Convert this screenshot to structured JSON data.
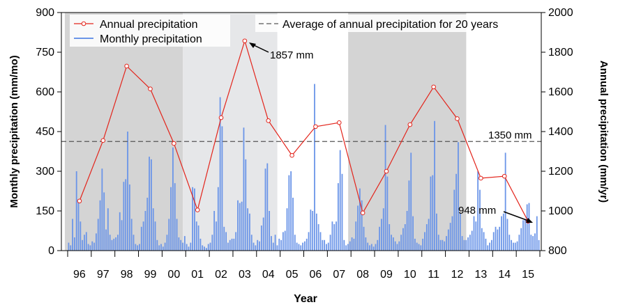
{
  "chart_data": {
    "type": "bar+line",
    "xlabel": "Year",
    "ylabel_left": "Monthly precipitation (mm/mo)",
    "ylabel_right": "Annual precipitation (mm/yr)",
    "ylim_left": [
      0,
      900
    ],
    "yticks_left": [
      0,
      150,
      300,
      450,
      600,
      750,
      900
    ],
    "ylim_right": [
      800,
      2000
    ],
    "yticks_right": [
      800,
      1000,
      1200,
      1400,
      1600,
      1800,
      2000
    ],
    "years": [
      "96",
      "97",
      "98",
      "99",
      "00",
      "01",
      "02",
      "03",
      "04",
      "05",
      "06",
      "07",
      "08",
      "09",
      "10",
      "11",
      "12",
      "13",
      "14",
      "15"
    ],
    "shaded_periods": [
      {
        "start_index": 0,
        "end_index": 4,
        "shade": "dark"
      },
      {
        "start_index": 5,
        "end_index": 8,
        "shade": "light"
      },
      {
        "start_index": 12,
        "end_index": 16,
        "shade": "dark"
      }
    ],
    "series": [
      {
        "name": "Annual precipitation",
        "axis": "right",
        "kind": "line",
        "color": "#e3241b",
        "values": [
          1050,
          1355,
          1730,
          1615,
          1340,
          1005,
          1470,
          1857,
          1455,
          1280,
          1425,
          1445,
          990,
          1200,
          1435,
          1625,
          1465,
          1165,
          1175,
          948
        ]
      },
      {
        "name": "Monthly precipitation",
        "axis": "left",
        "kind": "bar",
        "color": "#6b95e8",
        "values": [
          30,
          20,
          120,
          50,
          300,
          190,
          110,
          40,
          60,
          70,
          25,
          20,
          35,
          30,
          65,
          120,
          190,
          310,
          220,
          80,
          160,
          60,
          40,
          45,
          50,
          60,
          145,
          115,
          260,
          270,
          450,
          250,
          120,
          60,
          25,
          20,
          25,
          90,
          110,
          150,
          200,
          355,
          345,
          160,
          110,
          40,
          20,
          25,
          15,
          30,
          60,
          120,
          240,
          390,
          255,
          120,
          50,
          40,
          30,
          55,
          25,
          15,
          30,
          240,
          235,
          110,
          95,
          45,
          20,
          15,
          10,
          25,
          30,
          60,
          150,
          110,
          240,
          580,
          470,
          90,
          70,
          30,
          40,
          45,
          45,
          70,
          190,
          180,
          185,
          465,
          345,
          160,
          140,
          60,
          30,
          20,
          40,
          35,
          95,
          125,
          310,
          330,
          150,
          55,
          30,
          60,
          20,
          45,
          40,
          70,
          75,
          160,
          285,
          300,
          200,
          60,
          30,
          25,
          20,
          30,
          35,
          45,
          70,
          155,
          150,
          630,
          140,
          100,
          70,
          40,
          40,
          25,
          30,
          60,
          110,
          100,
          110,
          255,
          380,
          290,
          40,
          20,
          25,
          35,
          50,
          45,
          110,
          170,
          235,
          190,
          90,
          50,
          30,
          20,
          25,
          15,
          25,
          40,
          90,
          120,
          160,
          475,
          280,
          100,
          60,
          50,
          35,
          25,
          35,
          60,
          85,
          100,
          150,
          265,
          370,
          130,
          45,
          30,
          25,
          20,
          45,
          70,
          100,
          120,
          280,
          285,
          490,
          140,
          60,
          40,
          40,
          35,
          55,
          80,
          105,
          130,
          230,
          290,
          410,
          140,
          55,
          40,
          40,
          50,
          60,
          75,
          130,
          110,
          300,
          230,
          85,
          70,
          45,
          20,
          30,
          40,
          70,
          90,
          80,
          90,
          130,
          140,
          370,
          120,
          60,
          40,
          30,
          30,
          35,
          60,
          85,
          115,
          120,
          175,
          180,
          60,
          55,
          65,
          130,
          40
        ]
      },
      {
        "name": "Average of annual precipitation for 20 years",
        "axis": "right",
        "kind": "hline",
        "color": "#555555",
        "value": 1350
      }
    ],
    "annotations": [
      {
        "text": "1857 mm",
        "year_index": 7,
        "value": 1857
      },
      {
        "text": "1350 mm",
        "value": 1350
      },
      {
        "text": "948 mm",
        "year_index": 19,
        "value": 948
      }
    ]
  }
}
